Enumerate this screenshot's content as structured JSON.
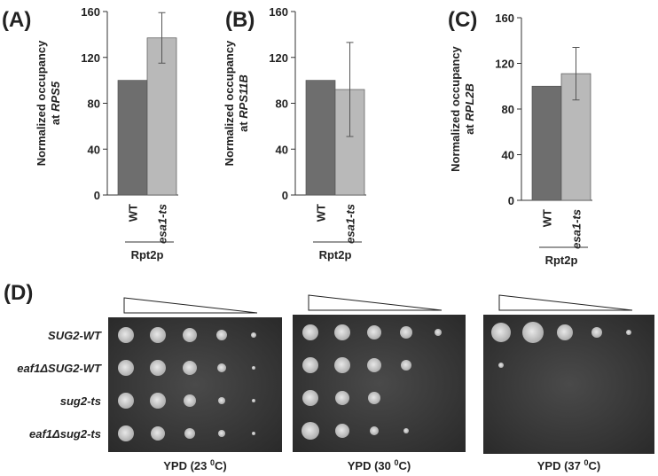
{
  "chart_data": [
    {
      "type": "bar",
      "panel": "(A)",
      "ylabel": [
        "Normalized occupancy",
        "at",
        "RPS5"
      ],
      "categories": [
        "WT",
        "esa1-ts"
      ],
      "group_label": "Rpt2p",
      "values": [
        100,
        137
      ],
      "errors": [
        null,
        22
      ],
      "colors": [
        "#6e6e6e",
        "#b9b9b9"
      ],
      "ylim": [
        0,
        160
      ],
      "yticks": [
        0,
        40,
        80,
        120,
        160
      ]
    },
    {
      "type": "bar",
      "panel": "(B)",
      "ylabel": [
        "Normalized occupancy",
        "at",
        "RPS11B"
      ],
      "categories": [
        "WT",
        "esa1-ts"
      ],
      "group_label": "Rpt2p",
      "values": [
        100,
        92
      ],
      "errors": [
        null,
        41
      ],
      "colors": [
        "#6e6e6e",
        "#b9b9b9"
      ],
      "ylim": [
        0,
        160
      ],
      "yticks": [
        0,
        40,
        80,
        120,
        160
      ]
    },
    {
      "type": "bar",
      "panel": "(C)",
      "ylabel": [
        "Normalized occupancy",
        "at",
        "RPL2B"
      ],
      "categories": [
        "WT",
        "esa1-ts"
      ],
      "group_label": "Rpt2p",
      "values": [
        100,
        111
      ],
      "errors": [
        null,
        23
      ],
      "colors": [
        "#6e6e6e",
        "#b9b9b9"
      ],
      "ylim": [
        0,
        160
      ],
      "yticks": [
        0,
        40,
        80,
        120,
        160
      ]
    }
  ],
  "panel_d": {
    "label": "(D)",
    "strains": [
      "SUG2-WT",
      "eaf1ΔSUG2-WT",
      "sug2-ts",
      "eaf1Δsug2-ts"
    ],
    "conditions": [
      {
        "prefix": "YPD (23 ",
        "sup": "0",
        "suffix": "C)"
      },
      {
        "prefix": "YPD (30 ",
        "sup": "0",
        "suffix": "C)"
      },
      {
        "prefix": "YPD (37 ",
        "sup": "0",
        "suffix": "C)"
      }
    ]
  }
}
